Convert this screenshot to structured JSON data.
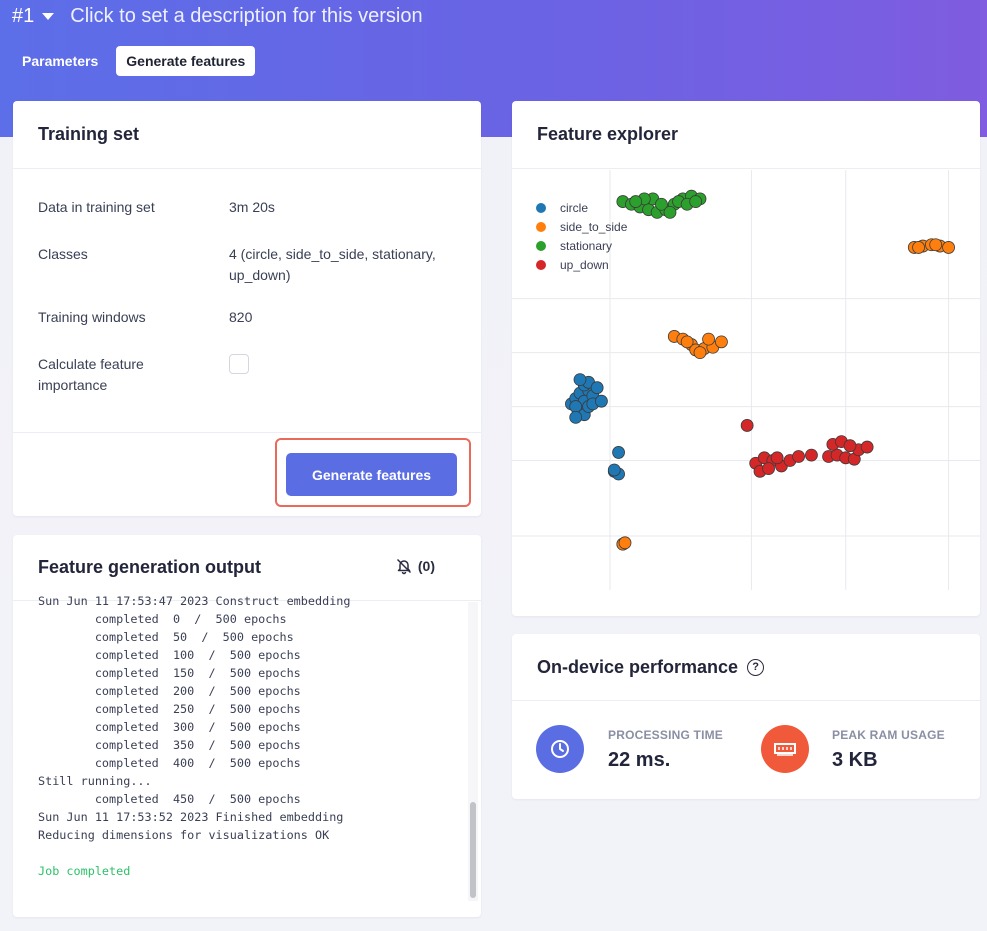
{
  "header": {
    "version": "#1",
    "description": "Click to set a description for this version",
    "tabs": [
      {
        "label": "Parameters",
        "active": false
      },
      {
        "label": "Generate features",
        "active": true
      }
    ]
  },
  "training_set": {
    "title": "Training set",
    "rows": [
      {
        "label": "Data in training set",
        "value": "3m 20s"
      },
      {
        "label": "Classes",
        "value": "4 (circle, side_to_side, stationary, up_down)"
      },
      {
        "label": "Training windows",
        "value": "820"
      },
      {
        "label": "Calculate feature importance",
        "value": ""
      }
    ],
    "checkbox_checked": false,
    "button_label": "Generate features"
  },
  "output": {
    "title": "Feature generation output",
    "notification_count": "(0)",
    "lines": [
      "Sun Jun 11 17:53:47 2023 Construct embedding",
      "        completed  0  /  500 epochs",
      "        completed  50  /  500 epochs",
      "        completed  100  /  500 epochs",
      "        completed  150  /  500 epochs",
      "        completed  200  /  500 epochs",
      "        completed  250  /  500 epochs",
      "        completed  300  /  500 epochs",
      "        completed  350  /  500 epochs",
      "        completed  400  /  500 epochs",
      "Still running...",
      "        completed  450  /  500 epochs",
      "Sun Jun 11 17:53:52 2023 Finished embedding",
      "Reducing dimensions for visualizations OK",
      "",
      "Job completed"
    ]
  },
  "explorer": {
    "title": "Feature explorer"
  },
  "chart_data": {
    "type": "scatter",
    "title": "",
    "xlabel": "",
    "ylabel": "",
    "grid": true,
    "legend_position": "top-left",
    "series": [
      {
        "name": "circle",
        "color": "#1f77b4",
        "points": [
          [
            1.2,
            6.9
          ],
          [
            1.3,
            7.1
          ],
          [
            1.4,
            7.3
          ],
          [
            1.5,
            7.0
          ],
          [
            1.6,
            7.4
          ],
          [
            1.4,
            6.6
          ],
          [
            1.3,
            6.8
          ],
          [
            1.5,
            6.5
          ],
          [
            1.6,
            6.8
          ],
          [
            1.7,
            7.2
          ],
          [
            1.5,
            7.6
          ],
          [
            1.6,
            7.7
          ],
          [
            1.4,
            7.8
          ],
          [
            1.3,
            6.4
          ],
          [
            1.7,
            6.9
          ],
          [
            1.8,
            7.5
          ],
          [
            1.9,
            7.0
          ],
          [
            2.3,
            5.1
          ],
          [
            2.2,
            4.4
          ],
          [
            2.3,
            4.3
          ],
          [
            2.2,
            4.45
          ],
          [
            2.4,
            1.7
          ]
        ]
      },
      {
        "name": "side_to_side",
        "color": "#ff7f0e",
        "points": [
          [
            3.6,
            9.4
          ],
          [
            3.8,
            9.3
          ],
          [
            4.0,
            9.1
          ],
          [
            4.1,
            8.9
          ],
          [
            4.3,
            8.95
          ],
          [
            4.5,
            9.0
          ],
          [
            4.7,
            9.2
          ],
          [
            3.9,
            9.2
          ],
          [
            4.2,
            8.8
          ],
          [
            4.4,
            9.3
          ],
          [
            9.2,
            12.7
          ],
          [
            9.4,
            12.75
          ],
          [
            9.6,
            12.8
          ],
          [
            9.8,
            12.75
          ],
          [
            10.0,
            12.7
          ],
          [
            9.3,
            12.7
          ],
          [
            9.7,
            12.8
          ],
          [
            2.4,
            1.7
          ],
          [
            2.45,
            1.75
          ]
        ]
      },
      {
        "name": "stationary",
        "color": "#2ca02c",
        "points": [
          [
            2.4,
            14.4
          ],
          [
            2.6,
            14.3
          ],
          [
            2.8,
            14.2
          ],
          [
            3.0,
            14.1
          ],
          [
            3.2,
            14.0
          ],
          [
            3.4,
            14.1
          ],
          [
            3.6,
            14.3
          ],
          [
            3.8,
            14.5
          ],
          [
            4.0,
            14.6
          ],
          [
            4.2,
            14.5
          ],
          [
            3.1,
            14.5
          ],
          [
            3.3,
            14.3
          ],
          [
            2.9,
            14.5
          ],
          [
            3.5,
            14.0
          ],
          [
            3.7,
            14.4
          ],
          [
            2.7,
            14.4
          ],
          [
            3.9,
            14.3
          ],
          [
            4.1,
            14.4
          ]
        ]
      },
      {
        "name": "up_down",
        "color": "#d62728",
        "points": [
          [
            5.3,
            6.1
          ],
          [
            5.5,
            4.7
          ],
          [
            5.7,
            4.9
          ],
          [
            5.9,
            4.8
          ],
          [
            6.1,
            4.6
          ],
          [
            6.3,
            4.8
          ],
          [
            5.6,
            4.4
          ],
          [
            5.8,
            4.5
          ],
          [
            6.0,
            4.9
          ],
          [
            6.5,
            4.95
          ],
          [
            6.8,
            5.0
          ],
          [
            7.2,
            4.95
          ],
          [
            7.4,
            5.0
          ],
          [
            7.6,
            4.9
          ],
          [
            7.8,
            4.85
          ],
          [
            7.3,
            5.4
          ],
          [
            7.5,
            5.5
          ],
          [
            7.9,
            5.2
          ],
          [
            8.1,
            5.3
          ],
          [
            7.7,
            5.35
          ]
        ]
      }
    ]
  },
  "performance": {
    "title": "On-device performance",
    "metrics": [
      {
        "label": "PROCESSING TIME",
        "value": "22 ms.",
        "color": "#5b6de3"
      },
      {
        "label": "PEAK RAM USAGE",
        "value": "3 KB",
        "color": "#f05a3a"
      }
    ]
  }
}
